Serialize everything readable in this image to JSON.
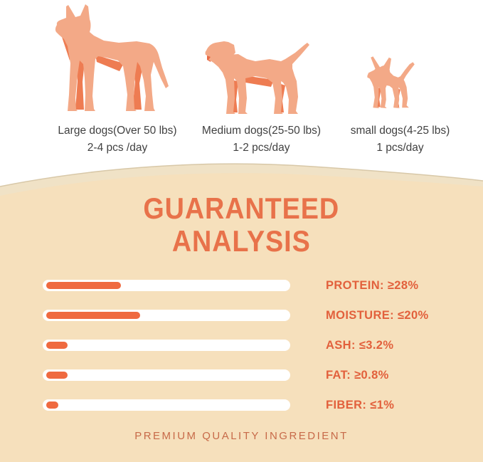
{
  "feeding_guide": {
    "columns": [
      {
        "dog": "large-dog",
        "label": "Large dogs(Over 50 lbs)",
        "amount": "2-4 pcs /day"
      },
      {
        "dog": "medium-dog",
        "label": "Medium dogs(25-50 lbs)",
        "amount": "1-2 pcs/day"
      },
      {
        "dog": "small-dog",
        "label": "small dogs(4-25 lbs)",
        "amount": "1 pcs/day"
      }
    ]
  },
  "analysis": {
    "title_line1": "GUARANTEED",
    "title_line2": "ANALYSIS",
    "footer": "PREMIUM QUALITY INGREDIENT",
    "rows": [
      {
        "label": "PROTEIN: ≥28%",
        "fill_percent": 31
      },
      {
        "label": "MOISTURE: ≤20%",
        "fill_percent": 39
      },
      {
        "label": "ASH: ≤3.2%",
        "fill_percent": 9
      },
      {
        "label": "FAT: ≥0.8%",
        "fill_percent": 9
      },
      {
        "label": "FIBER: ≤1%",
        "fill_percent": 5
      }
    ]
  },
  "chart_data": {
    "type": "bar",
    "orientation": "horizontal",
    "title": "GUARANTEED ANALYSIS",
    "categories": [
      "PROTEIN",
      "MOISTURE",
      "ASH",
      "FAT",
      "FIBER"
    ],
    "value_labels": [
      "≥28%",
      "≤20%",
      "≤3.2%",
      "≥0.8%",
      "≤1%"
    ],
    "values": [
      28,
      20,
      3.2,
      0.8,
      1
    ],
    "bar_fill_percent_of_track": [
      31,
      39,
      9,
      9,
      5
    ],
    "legend": "none",
    "note": "decorative pill bars; fill lengths are not proportional to the stated percentages"
  },
  "colors": {
    "top_background": "#ffffff",
    "panel_background": "#f6e0bc",
    "panel_back_curve": "#f0e2c6",
    "curve_stroke": "#d8c8a8",
    "accent_orange": "#e8724a",
    "bar_fill": "#ef6a40",
    "bar_track": "#ffffff",
    "bar_label_text": "#e2603c",
    "dog_body": "#f3a987",
    "dog_shade": "#ee7c52",
    "top_text": "#414141",
    "footer_text": "#c76a49"
  }
}
